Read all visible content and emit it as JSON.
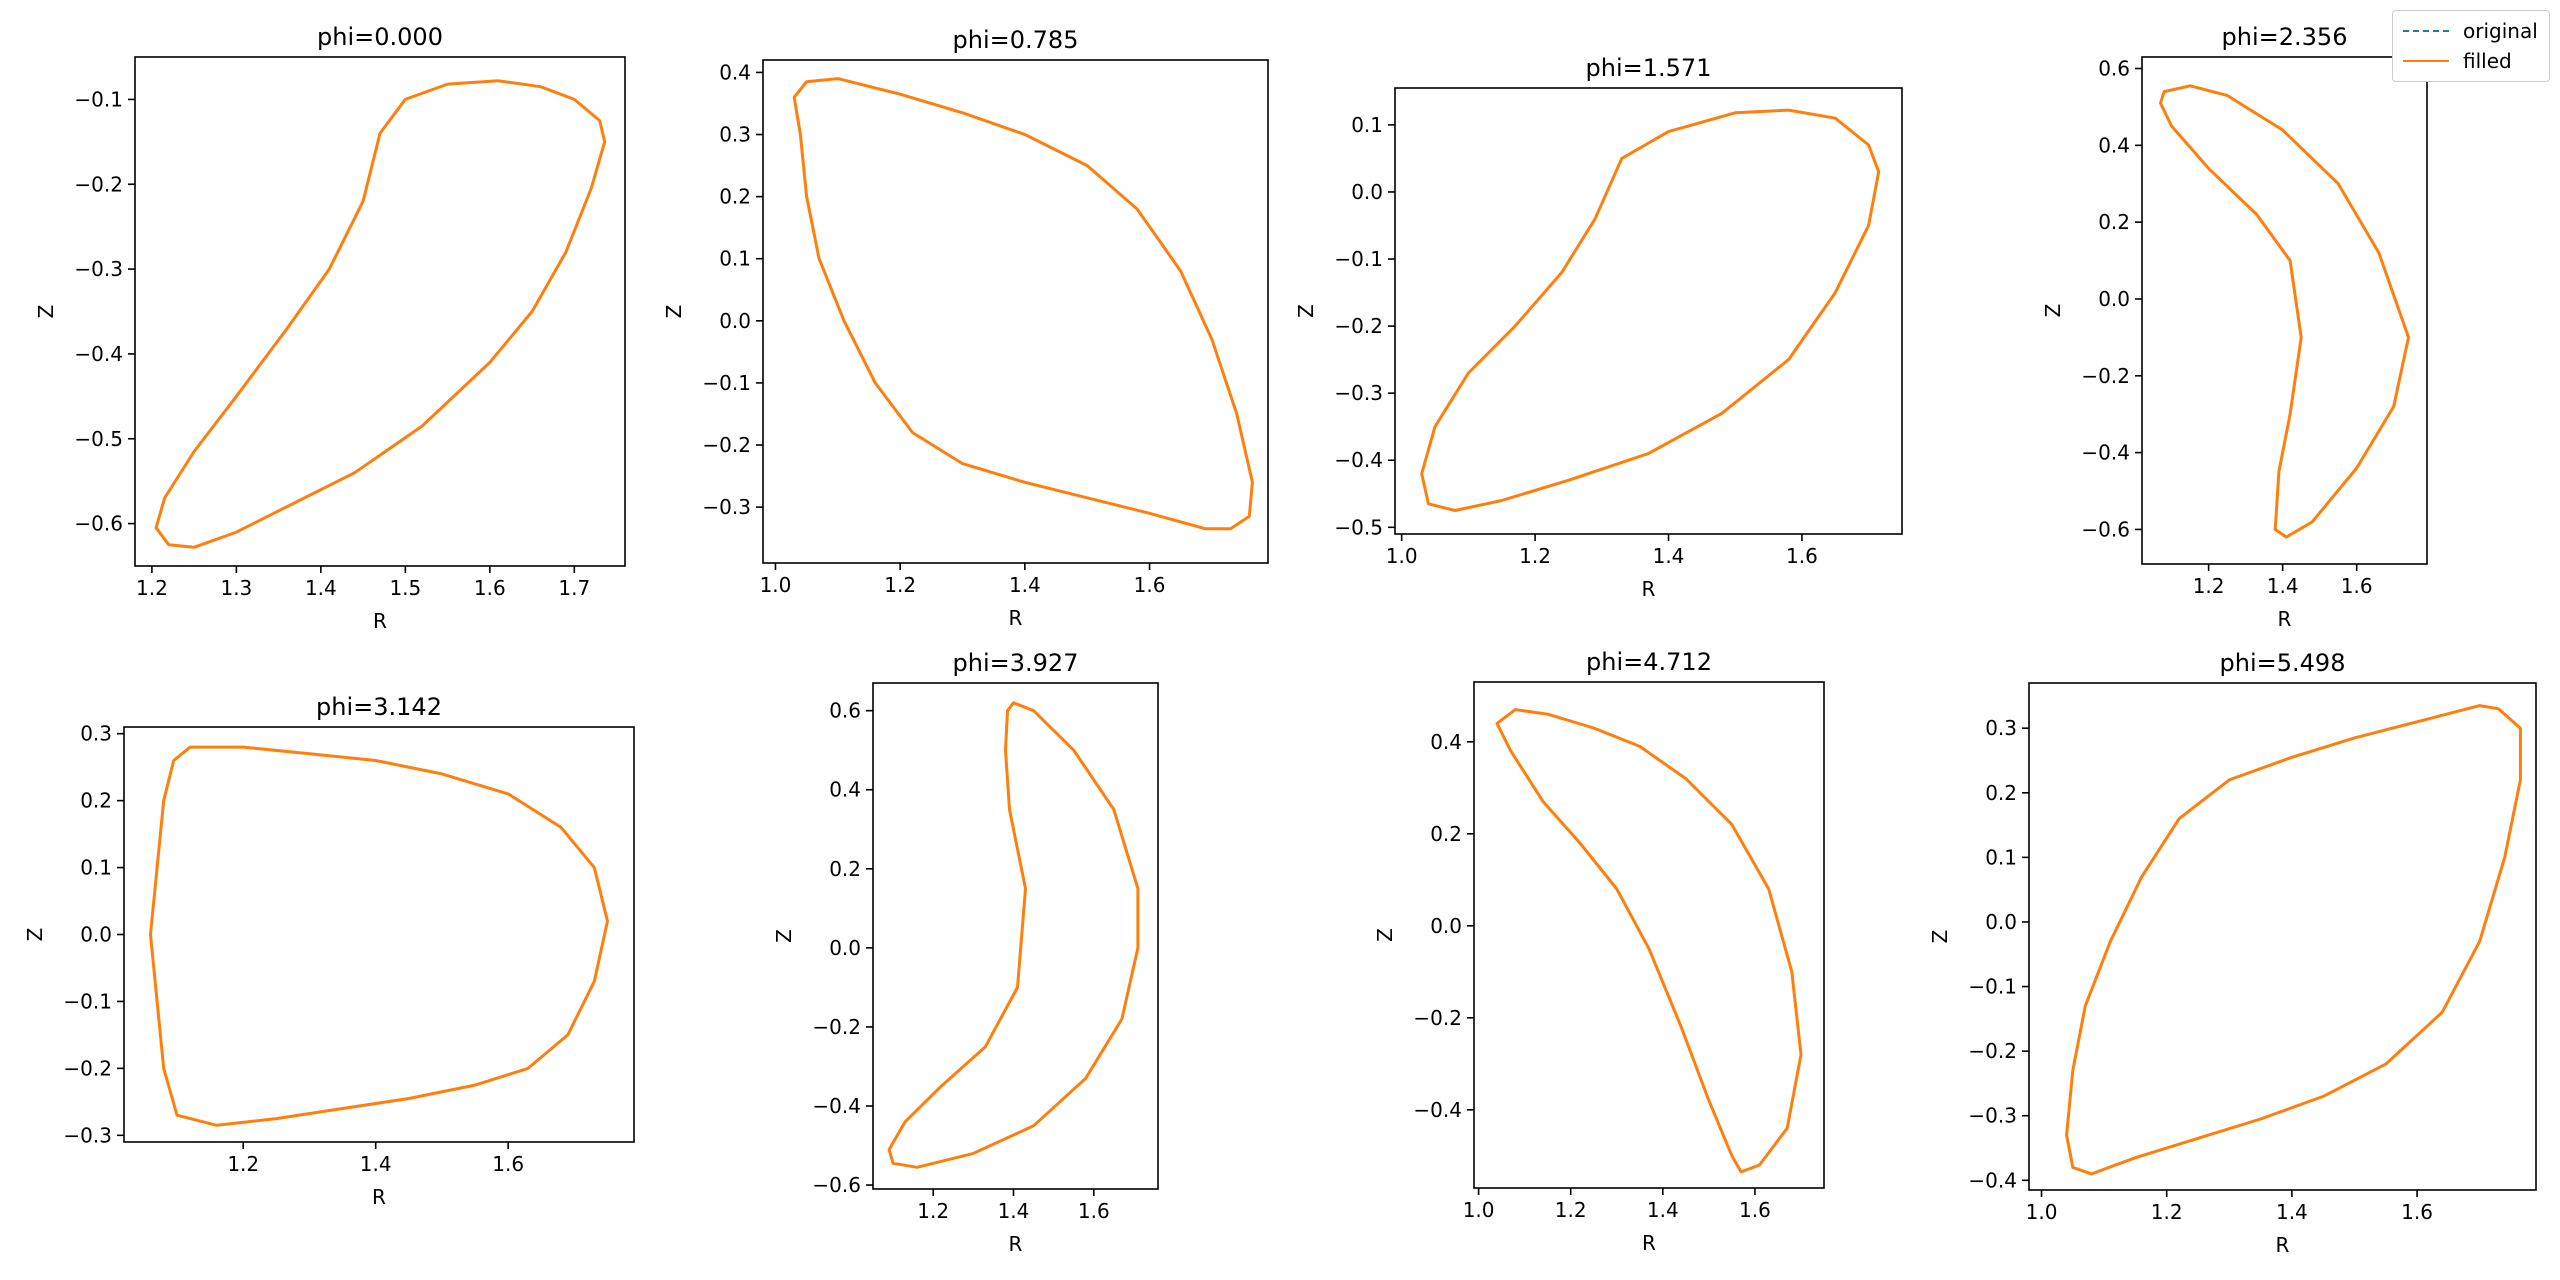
{
  "figure": {
    "legend": {
      "placement": "top-right",
      "items": [
        {
          "label": "original",
          "color": "#1f77b4",
          "style": "dashed"
        },
        {
          "label": "filled",
          "color": "#ff7f0e",
          "style": "solid"
        }
      ]
    }
  },
  "chart_data": [
    {
      "type": "line",
      "title": "phi=0.000",
      "xlabel": "R",
      "ylabel": "Z",
      "xlim": [
        1.18,
        1.76
      ],
      "ylim": [
        -0.65,
        -0.05
      ],
      "xticks": [
        "1.2",
        "1.3",
        "1.4",
        "1.5",
        "1.6",
        "1.7"
      ],
      "yticks": [
        "−0.6",
        "−0.5",
        "−0.4",
        "−0.3",
        "−0.2",
        "−0.1"
      ],
      "series": [
        {
          "name": "filled",
          "color": "#ff7f0e",
          "closed": true,
          "points": [
            [
              1.47,
              -0.14
            ],
            [
              1.5,
              -0.1
            ],
            [
              1.55,
              -0.082
            ],
            [
              1.61,
              -0.078
            ],
            [
              1.66,
              -0.085
            ],
            [
              1.7,
              -0.1
            ],
            [
              1.73,
              -0.125
            ],
            [
              1.736,
              -0.15
            ],
            [
              1.72,
              -0.205
            ],
            [
              1.69,
              -0.28
            ],
            [
              1.65,
              -0.35
            ],
            [
              1.6,
              -0.41
            ],
            [
              1.52,
              -0.485
            ],
            [
              1.44,
              -0.54
            ],
            [
              1.36,
              -0.58
            ],
            [
              1.3,
              -0.61
            ],
            [
              1.25,
              -0.628
            ],
            [
              1.22,
              -0.625
            ],
            [
              1.205,
              -0.605
            ],
            [
              1.215,
              -0.57
            ],
            [
              1.25,
              -0.515
            ],
            [
              1.3,
              -0.45
            ],
            [
              1.36,
              -0.37
            ],
            [
              1.41,
              -0.3
            ],
            [
              1.45,
              -0.22
            ],
            [
              1.465,
              -0.16
            ]
          ]
        }
      ]
    },
    {
      "type": "line",
      "title": "phi=0.785",
      "xlabel": "R",
      "ylabel": "Z",
      "xlim": [
        0.98,
        1.79
      ],
      "ylim": [
        -0.39,
        0.42
      ],
      "xticks": [
        "1.0",
        "1.2",
        "1.4",
        "1.6"
      ],
      "yticks": [
        "−0.3",
        "−0.2",
        "−0.1",
        "0.0",
        "0.1",
        "0.2",
        "0.3",
        "0.4"
      ],
      "series": [
        {
          "name": "filled",
          "color": "#ff7f0e",
          "closed": true,
          "points": [
            [
              1.1,
              0.39
            ],
            [
              1.2,
              0.365
            ],
            [
              1.3,
              0.335
            ],
            [
              1.4,
              0.3
            ],
            [
              1.5,
              0.25
            ],
            [
              1.58,
              0.18
            ],
            [
              1.65,
              0.08
            ],
            [
              1.7,
              -0.03
            ],
            [
              1.74,
              -0.15
            ],
            [
              1.765,
              -0.26
            ],
            [
              1.76,
              -0.315
            ],
            [
              1.73,
              -0.335
            ],
            [
              1.69,
              -0.335
            ],
            [
              1.6,
              -0.31
            ],
            [
              1.5,
              -0.285
            ],
            [
              1.4,
              -0.26
            ],
            [
              1.3,
              -0.23
            ],
            [
              1.22,
              -0.18
            ],
            [
              1.16,
              -0.1
            ],
            [
              1.11,
              0.0
            ],
            [
              1.07,
              0.1
            ],
            [
              1.05,
              0.2
            ],
            [
              1.04,
              0.3
            ],
            [
              1.03,
              0.36
            ],
            [
              1.05,
              0.385
            ]
          ]
        }
      ]
    },
    {
      "type": "line",
      "title": "phi=1.571",
      "xlabel": "R",
      "ylabel": "Z",
      "xlim": [
        0.99,
        1.75
      ],
      "ylim": [
        -0.51,
        0.155
      ],
      "xticks": [
        "1.0",
        "1.2",
        "1.4",
        "1.6"
      ],
      "yticks": [
        "−0.5",
        "−0.4",
        "−0.3",
        "−0.2",
        "−0.1",
        "0.0",
        "0.1"
      ],
      "series": [
        {
          "name": "filled",
          "color": "#ff7f0e",
          "closed": true,
          "points": [
            [
              1.33,
              0.05
            ],
            [
              1.4,
              0.09
            ],
            [
              1.5,
              0.118
            ],
            [
              1.58,
              0.122
            ],
            [
              1.65,
              0.11
            ],
            [
              1.7,
              0.07
            ],
            [
              1.715,
              0.03
            ],
            [
              1.7,
              -0.05
            ],
            [
              1.65,
              -0.15
            ],
            [
              1.58,
              -0.25
            ],
            [
              1.48,
              -0.33
            ],
            [
              1.37,
              -0.39
            ],
            [
              1.25,
              -0.43
            ],
            [
              1.15,
              -0.46
            ],
            [
              1.08,
              -0.475
            ],
            [
              1.04,
              -0.465
            ],
            [
              1.03,
              -0.42
            ],
            [
              1.05,
              -0.35
            ],
            [
              1.1,
              -0.27
            ],
            [
              1.17,
              -0.2
            ],
            [
              1.24,
              -0.12
            ],
            [
              1.29,
              -0.04
            ]
          ]
        }
      ]
    },
    {
      "type": "line",
      "title": "phi=2.356",
      "xlabel": "R",
      "ylabel": "Z",
      "xlim": [
        1.02,
        1.79
      ],
      "ylim": [
        -0.69,
        0.63
      ],
      "xticks": [
        "1.2",
        "1.4",
        "1.6"
      ],
      "yticks": [
        "−0.6",
        "−0.4",
        "−0.2",
        "0.0",
        "0.2",
        "0.4",
        "0.6"
      ],
      "series": [
        {
          "name": "filled",
          "color": "#ff7f0e",
          "closed": true,
          "points": [
            [
              1.08,
              0.54
            ],
            [
              1.15,
              0.555
            ],
            [
              1.25,
              0.53
            ],
            [
              1.4,
              0.44
            ],
            [
              1.55,
              0.3
            ],
            [
              1.66,
              0.12
            ],
            [
              1.74,
              -0.1
            ],
            [
              1.7,
              -0.28
            ],
            [
              1.6,
              -0.44
            ],
            [
              1.48,
              -0.58
            ],
            [
              1.41,
              -0.62
            ],
            [
              1.38,
              -0.6
            ],
            [
              1.39,
              -0.45
            ],
            [
              1.42,
              -0.3
            ],
            [
              1.45,
              -0.1
            ],
            [
              1.42,
              0.1
            ],
            [
              1.33,
              0.22
            ],
            [
              1.2,
              0.34
            ],
            [
              1.1,
              0.45
            ],
            [
              1.07,
              0.51
            ]
          ]
        }
      ]
    },
    {
      "type": "line",
      "title": "phi=3.142",
      "xlabel": "R",
      "ylabel": "Z",
      "xlim": [
        1.02,
        1.79
      ],
      "ylim": [
        -0.31,
        0.31
      ],
      "xticks": [
        "1.2",
        "1.4",
        "1.6"
      ],
      "yticks": [
        "−0.3",
        "−0.2",
        "−0.1",
        "0.0",
        "0.1",
        "0.2",
        "0.3"
      ],
      "series": [
        {
          "name": "filled",
          "color": "#ff7f0e",
          "closed": true,
          "points": [
            [
              1.12,
              0.28
            ],
            [
              1.2,
              0.28
            ],
            [
              1.3,
              0.27
            ],
            [
              1.4,
              0.26
            ],
            [
              1.5,
              0.24
            ],
            [
              1.6,
              0.21
            ],
            [
              1.68,
              0.16
            ],
            [
              1.73,
              0.1
            ],
            [
              1.75,
              0.02
            ],
            [
              1.73,
              -0.07
            ],
            [
              1.69,
              -0.15
            ],
            [
              1.63,
              -0.2
            ],
            [
              1.55,
              -0.225
            ],
            [
              1.45,
              -0.245
            ],
            [
              1.35,
              -0.26
            ],
            [
              1.25,
              -0.275
            ],
            [
              1.16,
              -0.285
            ],
            [
              1.1,
              -0.27
            ],
            [
              1.08,
              -0.2
            ],
            [
              1.07,
              -0.1
            ],
            [
              1.06,
              0.0
            ],
            [
              1.07,
              0.1
            ],
            [
              1.08,
              0.2
            ],
            [
              1.095,
              0.26
            ]
          ]
        }
      ]
    },
    {
      "type": "line",
      "title": "phi=3.927",
      "xlabel": "R",
      "ylabel": "Z",
      "xlim": [
        1.05,
        1.76
      ],
      "ylim": [
        -0.61,
        0.67
      ],
      "xticks": [
        "1.2",
        "1.4",
        "1.6"
      ],
      "yticks": [
        "−0.6",
        "−0.4",
        "−0.2",
        "0.0",
        "0.2",
        "0.4",
        "0.6"
      ],
      "series": [
        {
          "name": "filled",
          "color": "#ff7f0e",
          "closed": true,
          "points": [
            [
              1.4,
              0.62
            ],
            [
              1.45,
              0.6
            ],
            [
              1.55,
              0.5
            ],
            [
              1.65,
              0.35
            ],
            [
              1.71,
              0.15
            ],
            [
              1.71,
              0.0
            ],
            [
              1.67,
              -0.18
            ],
            [
              1.58,
              -0.33
            ],
            [
              1.45,
              -0.45
            ],
            [
              1.3,
              -0.52
            ],
            [
              1.16,
              -0.555
            ],
            [
              1.1,
              -0.545
            ],
            [
              1.09,
              -0.51
            ],
            [
              1.13,
              -0.44
            ],
            [
              1.22,
              -0.35
            ],
            [
              1.33,
              -0.25
            ],
            [
              1.41,
              -0.1
            ],
            [
              1.43,
              0.15
            ],
            [
              1.39,
              0.35
            ],
            [
              1.38,
              0.5
            ],
            [
              1.385,
              0.6
            ]
          ]
        }
      ]
    },
    {
      "type": "line",
      "title": "phi=4.712",
      "xlabel": "R",
      "ylabel": "Z",
      "xlim": [
        0.99,
        1.75
      ],
      "ylim": [
        -0.57,
        0.53
      ],
      "xticks": [
        "1.0",
        "1.2",
        "1.4",
        "1.6"
      ],
      "yticks": [
        "−0.4",
        "−0.2",
        "0.0",
        "0.2",
        "0.4"
      ],
      "series": [
        {
          "name": "filled",
          "color": "#ff7f0e",
          "closed": true,
          "points": [
            [
              1.08,
              0.47
            ],
            [
              1.15,
              0.46
            ],
            [
              1.25,
              0.43
            ],
            [
              1.35,
              0.39
            ],
            [
              1.45,
              0.32
            ],
            [
              1.55,
              0.22
            ],
            [
              1.63,
              0.08
            ],
            [
              1.68,
              -0.1
            ],
            [
              1.7,
              -0.28
            ],
            [
              1.67,
              -0.44
            ],
            [
              1.61,
              -0.52
            ],
            [
              1.57,
              -0.535
            ],
            [
              1.55,
              -0.5
            ],
            [
              1.5,
              -0.38
            ],
            [
              1.44,
              -0.22
            ],
            [
              1.37,
              -0.05
            ],
            [
              1.3,
              0.08
            ],
            [
              1.22,
              0.18
            ],
            [
              1.14,
              0.27
            ],
            [
              1.07,
              0.38
            ],
            [
              1.04,
              0.44
            ]
          ]
        }
      ]
    },
    {
      "type": "line",
      "title": "phi=5.498",
      "xlabel": "R",
      "ylabel": "Z",
      "xlim": [
        0.98,
        1.79
      ],
      "ylim": [
        -0.415,
        0.37
      ],
      "xticks": [
        "1.0",
        "1.2",
        "1.4",
        "1.6"
      ],
      "yticks": [
        "−0.4",
        "−0.3",
        "−0.2",
        "−0.1",
        "0.0",
        "0.1",
        "0.2",
        "0.3"
      ],
      "series": [
        {
          "name": "filled",
          "color": "#ff7f0e",
          "closed": true,
          "points": [
            [
              1.08,
              -0.39
            ],
            [
              1.15,
              -0.365
            ],
            [
              1.25,
              -0.335
            ],
            [
              1.35,
              -0.305
            ],
            [
              1.45,
              -0.27
            ],
            [
              1.55,
              -0.22
            ],
            [
              1.64,
              -0.14
            ],
            [
              1.7,
              -0.03
            ],
            [
              1.74,
              0.1
            ],
            [
              1.765,
              0.22
            ],
            [
              1.765,
              0.3
            ],
            [
              1.73,
              0.33
            ],
            [
              1.7,
              0.335
            ],
            [
              1.6,
              0.31
            ],
            [
              1.5,
              0.285
            ],
            [
              1.4,
              0.255
            ],
            [
              1.3,
              0.22
            ],
            [
              1.22,
              0.16
            ],
            [
              1.16,
              0.07
            ],
            [
              1.11,
              -0.03
            ],
            [
              1.07,
              -0.13
            ],
            [
              1.05,
              -0.23
            ],
            [
              1.04,
              -0.33
            ],
            [
              1.05,
              -0.38
            ]
          ]
        }
      ]
    }
  ]
}
